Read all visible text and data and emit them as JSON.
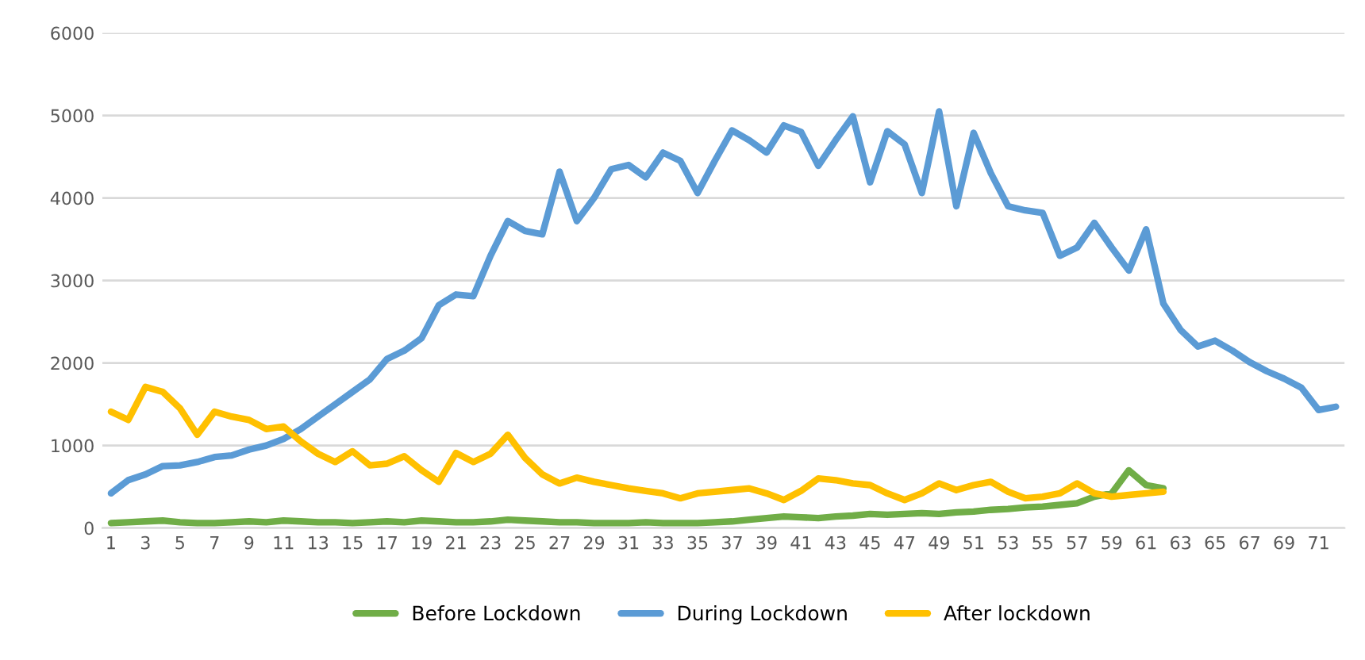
{
  "chart_data": {
    "type": "line",
    "categories": [
      "1",
      null,
      "3",
      null,
      "5",
      null,
      "7",
      null,
      "9",
      null,
      "11",
      null,
      "13",
      null,
      "15",
      null,
      "17",
      null,
      "19",
      null,
      "21",
      null,
      "23",
      null,
      "25",
      null,
      "27",
      null,
      "29",
      null,
      "31",
      null,
      "33",
      null,
      "35",
      null,
      "37",
      null,
      "39",
      null,
      "41",
      null,
      "43",
      null,
      "45",
      null,
      "47",
      null,
      "49",
      null,
      "51",
      null,
      "53",
      null,
      "55",
      null,
      "57",
      null,
      "59",
      null,
      "61",
      null,
      "63",
      null,
      "65",
      null,
      "67",
      null,
      "69",
      null,
      "71",
      null
    ],
    "series": [
      {
        "name": "Before Lockdown",
        "color": "#70ad47",
        "values": [
          60,
          70,
          80,
          90,
          70,
          60,
          60,
          70,
          80,
          70,
          90,
          80,
          70,
          70,
          60,
          70,
          80,
          70,
          90,
          80,
          70,
          70,
          80,
          100,
          90,
          80,
          70,
          70,
          60,
          60,
          60,
          70,
          60,
          60,
          60,
          70,
          80,
          100,
          120,
          140,
          130,
          120,
          140,
          150,
          170,
          160,
          170,
          180,
          170,
          190,
          200,
          220,
          230,
          250,
          260,
          280,
          300,
          380,
          420,
          700,
          520,
          480,
          null,
          null,
          null,
          null,
          null,
          null,
          null,
          null,
          null,
          null
        ]
      },
      {
        "name": "During Lockdown",
        "color": "#5b9bd5",
        "values": [
          420,
          580,
          650,
          750,
          760,
          800,
          860,
          880,
          950,
          1000,
          1080,
          1200,
          1350,
          1500,
          1650,
          1800,
          2050,
          2150,
          2300,
          2700,
          2830,
          2810,
          3300,
          3720,
          3600,
          3560,
          4320,
          3720,
          4000,
          4350,
          4400,
          4250,
          4550,
          4450,
          4060,
          4450,
          4820,
          4700,
          4550,
          4880,
          4800,
          4390,
          4700,
          4990,
          4190,
          4810,
          4650,
          4060,
          5050,
          3900,
          4790,
          4300,
          3900,
          3850,
          3820,
          3300,
          3400,
          3700,
          3400,
          3120,
          3620,
          2720,
          2400,
          2200,
          2270,
          2150,
          2010,
          1900,
          1810,
          1700,
          1430,
          1470
        ]
      },
      {
        "name": "After lockdown",
        "color": "#ffc000",
        "values": [
          1410,
          1310,
          1710,
          1650,
          1450,
          1130,
          1410,
          1350,
          1310,
          1200,
          1230,
          1050,
          900,
          800,
          930,
          760,
          780,
          870,
          700,
          560,
          910,
          800,
          900,
          1130,
          850,
          650,
          540,
          610,
          560,
          520,
          480,
          450,
          420,
          360,
          420,
          440,
          460,
          480,
          420,
          340,
          450,
          600,
          580,
          540,
          520,
          420,
          340,
          420,
          540,
          460,
          520,
          560,
          440,
          360,
          380,
          420,
          540,
          420,
          380,
          400,
          420,
          440,
          null,
          null,
          null,
          null,
          null,
          null,
          null,
          null,
          null,
          null
        ]
      }
    ],
    "ylim": [
      0,
      6000
    ],
    "yticks": [
      0,
      1000,
      2000,
      3000,
      4000,
      5000,
      6000
    ],
    "grid": "y",
    "legend": "bottom",
    "marker": "none",
    "line_style": "solid"
  }
}
